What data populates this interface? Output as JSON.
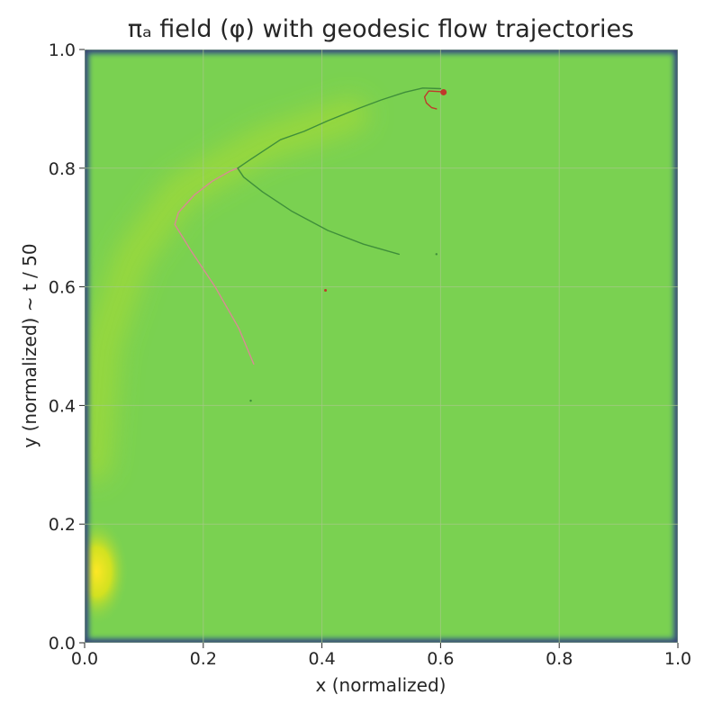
{
  "chart_data": {
    "type": "heatmap",
    "title": "πₐ field (φ) with geodesic flow trajectories",
    "xlabel": "x (normalized)",
    "ylabel": "y (normalized)  ~  t / 50",
    "xlim": [
      0.0,
      1.0
    ],
    "ylim": [
      0.0,
      1.0
    ],
    "xticks": [
      "0.0",
      "0.2",
      "0.4",
      "0.6",
      "0.8",
      "1.0"
    ],
    "yticks": [
      "0.0",
      "0.2",
      "0.4",
      "0.6",
      "0.8",
      "1.0"
    ],
    "grid": true,
    "colormap": "viridis",
    "colors": {
      "field_base": "#7ad151",
      "field_ridge": "#9dd93b",
      "field_peak": "#fde725",
      "border": "#31688e",
      "edge": "#440154",
      "grid": "#a8c88a",
      "traj_green": "#3f8f3a",
      "traj_pink": "#d98a95",
      "traj_red": "#c0392b"
    },
    "field_features": [
      {
        "kind": "peak",
        "x": 0.02,
        "y": 0.12
      },
      {
        "kind": "ridge",
        "points": [
          [
            0.015,
            0.3
          ],
          [
            0.03,
            0.5
          ],
          [
            0.08,
            0.65
          ],
          [
            0.16,
            0.76
          ],
          [
            0.3,
            0.84
          ],
          [
            0.45,
            0.89
          ]
        ]
      }
    ],
    "series": [
      {
        "color": "traj_pink",
        "points": [
          [
            0.285,
            0.47
          ],
          [
            0.26,
            0.53
          ],
          [
            0.22,
            0.6
          ],
          [
            0.18,
            0.66
          ],
          [
            0.152,
            0.705
          ],
          [
            0.158,
            0.725
          ],
          [
            0.185,
            0.755
          ],
          [
            0.215,
            0.778
          ],
          [
            0.245,
            0.795
          ],
          [
            0.258,
            0.8
          ]
        ]
      },
      {
        "color": "traj_green",
        "points": [
          [
            0.53,
            0.655
          ],
          [
            0.47,
            0.672
          ],
          [
            0.41,
            0.695
          ],
          [
            0.35,
            0.727
          ],
          [
            0.3,
            0.76
          ],
          [
            0.268,
            0.785
          ],
          [
            0.258,
            0.8
          ],
          [
            0.28,
            0.815
          ],
          [
            0.33,
            0.848
          ],
          [
            0.37,
            0.862
          ],
          [
            0.41,
            0.88
          ],
          [
            0.46,
            0.9
          ],
          [
            0.5,
            0.915
          ],
          [
            0.54,
            0.928
          ],
          [
            0.57,
            0.935
          ],
          [
            0.6,
            0.934
          ]
        ]
      },
      {
        "color": "traj_red",
        "points": [
          [
            0.6,
            0.929
          ],
          [
            0.58,
            0.93
          ],
          [
            0.573,
            0.92
          ],
          [
            0.576,
            0.91
          ],
          [
            0.585,
            0.902
          ],
          [
            0.593,
            0.9
          ]
        ]
      }
    ],
    "markers": [
      {
        "x": 0.605,
        "y": 0.928,
        "color": "traj_red",
        "r": 3.5
      },
      {
        "x": 0.406,
        "y": 0.594,
        "color": "traj_red",
        "r": 1.5
      },
      {
        "x": 0.593,
        "y": 0.655,
        "color": "traj_green",
        "r": 1.2
      },
      {
        "x": 0.28,
        "y": 0.408,
        "color": "traj_green",
        "r": 1.2
      }
    ]
  }
}
